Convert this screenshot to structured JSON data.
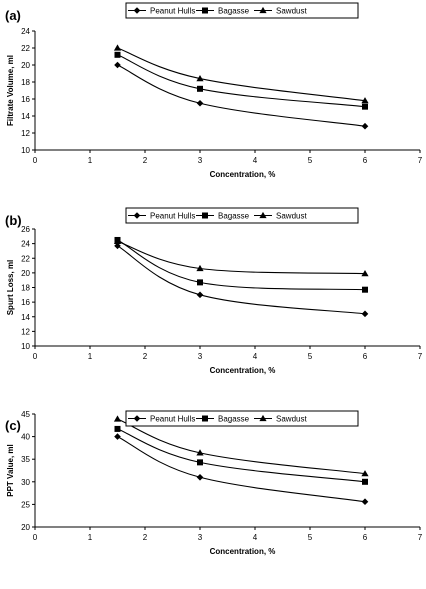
{
  "chart_data": [
    {
      "type": "line",
      "panel_label": "(a)",
      "x": [
        1.5,
        3,
        6
      ],
      "xlabel": "Concentration, %",
      "ylabel": "Filtrate Volume, ml",
      "xlim": [
        0,
        7
      ],
      "ylim": [
        10,
        24
      ],
      "xticks": [
        0,
        1,
        2,
        3,
        4,
        5,
        6,
        7
      ],
      "yticks": [
        10,
        12,
        14,
        16,
        18,
        20,
        22,
        24
      ],
      "legend_position": "top",
      "grid": false,
      "series": [
        {
          "name": "Peanut Hulls",
          "marker": "diamond",
          "values": [
            20.0,
            15.5,
            12.8
          ]
        },
        {
          "name": "Bagasse",
          "marker": "square",
          "values": [
            21.2,
            17.2,
            15.1
          ]
        },
        {
          "name": "Sawdust",
          "marker": "triangle",
          "values": [
            22.0,
            18.4,
            15.8
          ]
        }
      ]
    },
    {
      "type": "line",
      "panel_label": "(b)",
      "x": [
        1.5,
        3,
        6
      ],
      "xlabel": "Concentration, %",
      "ylabel": "Spurt Loss, ml",
      "xlim": [
        0,
        7
      ],
      "ylim": [
        10,
        26
      ],
      "xticks": [
        0,
        1,
        2,
        3,
        4,
        5,
        6,
        7
      ],
      "yticks": [
        10,
        12,
        14,
        16,
        18,
        20,
        22,
        24,
        26
      ],
      "legend_position": "top",
      "grid": false,
      "series": [
        {
          "name": "Peanut Hulls",
          "marker": "diamond",
          "values": [
            23.7,
            17.0,
            14.4
          ]
        },
        {
          "name": "Bagasse",
          "marker": "square",
          "values": [
            24.5,
            18.7,
            17.7
          ]
        },
        {
          "name": "Sawdust",
          "marker": "triangle",
          "values": [
            24.3,
            20.6,
            19.9
          ]
        }
      ]
    },
    {
      "type": "line",
      "panel_label": "(c)",
      "x": [
        1.5,
        3,
        6
      ],
      "xlabel": "Concentration, %",
      "ylabel": "PPT Value, ml",
      "xlim": [
        0,
        7
      ],
      "ylim": [
        20,
        45
      ],
      "xticks": [
        0,
        1,
        2,
        3,
        4,
        5,
        6,
        7
      ],
      "yticks": [
        20,
        25,
        30,
        35,
        40,
        45
      ],
      "legend_position": "top",
      "grid": false,
      "series": [
        {
          "name": "Peanut Hulls",
          "marker": "diamond",
          "values": [
            40.0,
            31.0,
            25.6
          ]
        },
        {
          "name": "Bagasse",
          "marker": "square",
          "values": [
            41.7,
            34.3,
            30.0
          ]
        },
        {
          "name": "Sawdust",
          "marker": "triangle",
          "values": [
            43.9,
            36.4,
            31.8
          ]
        }
      ]
    }
  ]
}
